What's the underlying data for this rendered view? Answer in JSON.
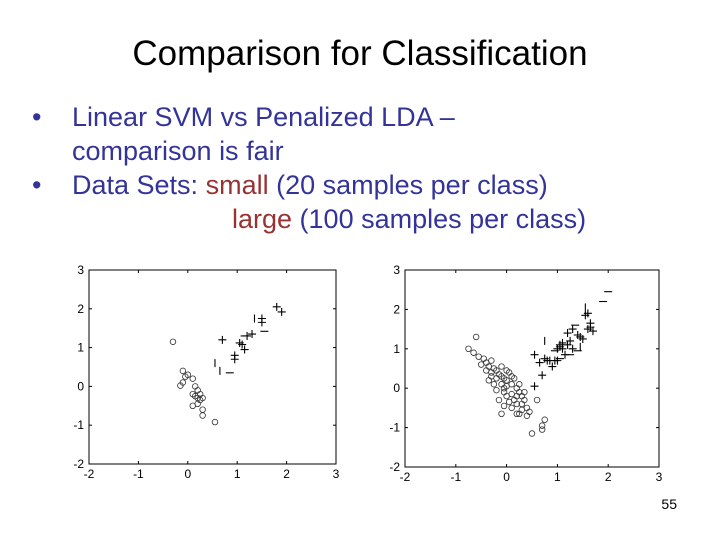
{
  "title": "Comparison for Classification",
  "bullets": [
    {
      "line1": "Linear SVM vs Penalized LDA –",
      "line2": "comparison is fair"
    },
    {
      "prefix": "Data Sets: ",
      "small_word": "small",
      "small_desc": " (20 samples per class)",
      "large_word": "large",
      "large_desc": " (100 samples per class)"
    }
  ],
  "bullet_char": "•",
  "page_number": "55",
  "colors": {
    "text_blue": "#333399",
    "highlight_red": "#993333"
  },
  "chart_data": [
    {
      "type": "scatter",
      "title": "",
      "xlabel": "",
      "ylabel": "",
      "xlim": [
        -2,
        3
      ],
      "ylim": [
        -2,
        3
      ],
      "xticks": [
        "-2",
        "-1",
        "0",
        "1",
        "2",
        "3"
      ],
      "yticks": [
        "-2",
        "-1",
        "0",
        "1",
        "2",
        "3"
      ],
      "series": [
        {
          "name": "class-circle",
          "marker": "o",
          "points": [
            [
              -0.3,
              1.15
            ],
            [
              -0.1,
              0.4
            ],
            [
              -0.05,
              0.25
            ],
            [
              -0.1,
              0.1
            ],
            [
              -0.15,
              0.02
            ],
            [
              0.1,
              0.2
            ],
            [
              0.15,
              0
            ],
            [
              0.2,
              -0.1
            ],
            [
              0.1,
              -0.2
            ],
            [
              0.2,
              -0.3
            ],
            [
              0.25,
              -0.35
            ],
            [
              0.3,
              -0.3
            ],
            [
              0.15,
              -0.25
            ],
            [
              0.1,
              -0.5
            ],
            [
              0.2,
              -0.45
            ],
            [
              0.3,
              -0.6
            ],
            [
              0.3,
              -0.75
            ],
            [
              0.55,
              -0.92
            ],
            [
              0,
              0.3
            ],
            [
              0.25,
              -0.2
            ]
          ]
        },
        {
          "name": "class-plus",
          "marker": "+",
          "points": [
            [
              1.8,
              2.05
            ],
            [
              1.9,
              1.92
            ],
            [
              1.5,
              1.75
            ],
            [
              1.5,
              1.65
            ],
            [
              1.3,
              1.35
            ],
            [
              1.05,
              1.12
            ],
            [
              1.1,
              1.08
            ],
            [
              1.15,
              0.95
            ],
            [
              0.7,
              1.2
            ],
            [
              0.95,
              0.8
            ],
            [
              0.95,
              0.7
            ],
            [
              1.2,
              1.3
            ]
          ]
        },
        {
          "name": "class-vbar",
          "marker": "|",
          "points": [
            [
              0.55,
              0.6
            ],
            [
              0.65,
              0.4
            ],
            [
              1.35,
              1.75
            ]
          ]
        },
        {
          "name": "class-dash",
          "marker": "-",
          "points": [
            [
              0.85,
              0.35
            ],
            [
              1.55,
              1.42
            ],
            [
              1.15,
              1.3
            ]
          ]
        }
      ]
    },
    {
      "type": "scatter",
      "title": "",
      "xlabel": "",
      "ylabel": "",
      "xlim": [
        -2,
        3
      ],
      "ylim": [
        -2,
        3
      ],
      "xticks": [
        "-2",
        "-1",
        "0",
        "1",
        "2",
        "3"
      ],
      "yticks": [
        "-2",
        "-1",
        "0",
        "1",
        "2",
        "3"
      ],
      "series": [
        {
          "name": "class-circle",
          "marker": "o",
          "points": [
            [
              -0.6,
              1.3
            ],
            [
              -0.75,
              1.0
            ],
            [
              -0.65,
              0.9
            ],
            [
              -0.55,
              0.8
            ],
            [
              -0.45,
              0.75
            ],
            [
              -0.5,
              0.6
            ],
            [
              -0.4,
              0.65
            ],
            [
              -0.35,
              0.55
            ],
            [
              -0.3,
              0.7
            ],
            [
              -0.25,
              0.5
            ],
            [
              -0.2,
              0.45
            ],
            [
              -0.3,
              0.4
            ],
            [
              -0.15,
              0.35
            ],
            [
              -0.1,
              0.3
            ],
            [
              -0.2,
              0.25
            ],
            [
              -0.05,
              0.25
            ],
            [
              0,
              0.2
            ],
            [
              -0.1,
              0.1
            ],
            [
              -0.25,
              0.1
            ],
            [
              0.05,
              0.4
            ],
            [
              0.1,
              0.3
            ],
            [
              0.15,
              0.25
            ],
            [
              0.0,
              0.05
            ],
            [
              -0.05,
              0.0
            ],
            [
              0.1,
              0.1
            ],
            [
              0.2,
              0.0
            ],
            [
              0.25,
              -0.1
            ],
            [
              0.3,
              -0.2
            ],
            [
              0.1,
              -0.15
            ],
            [
              0.0,
              -0.2
            ],
            [
              -0.05,
              -0.1
            ],
            [
              0.15,
              -0.3
            ],
            [
              0.2,
              -0.4
            ],
            [
              0.35,
              -0.3
            ],
            [
              0.4,
              -0.5
            ],
            [
              0.3,
              -0.55
            ],
            [
              0.25,
              -0.65
            ],
            [
              0.45,
              -0.6
            ],
            [
              0.4,
              -0.7
            ],
            [
              0.1,
              -0.5
            ],
            [
              -0.05,
              -0.45
            ],
            [
              -0.15,
              -0.3
            ],
            [
              -0.1,
              -0.65
            ],
            [
              0.2,
              -0.65
            ],
            [
              0.35,
              -0.1
            ],
            [
              -0.35,
              0.2
            ],
            [
              -0.2,
              -0.05
            ],
            [
              0.05,
              -0.35
            ],
            [
              0.25,
              0.1
            ],
            [
              -0.4,
              0.45
            ],
            [
              0.6,
              -0.3
            ],
            [
              0.75,
              -0.8
            ],
            [
              0.7,
              -0.95
            ],
            [
              0.5,
              -1.15
            ],
            [
              0.7,
              -1.05
            ],
            [
              -0.1,
              0.55
            ],
            [
              0.2,
              -0.2
            ],
            [
              0.3,
              -0.4
            ],
            [
              -0.3,
              0.3
            ],
            [
              0.0,
              0.45
            ]
          ]
        },
        {
          "name": "class-plus",
          "marker": "+",
          "points": [
            [
              0.55,
              0.85
            ],
            [
              0.65,
              0.65
            ],
            [
              0.7,
              0.33
            ],
            [
              0.55,
              0.05
            ],
            [
              0.75,
              0.75
            ],
            [
              0.85,
              0.7
            ],
            [
              0.9,
              0.55
            ],
            [
              0.95,
              0.7
            ],
            [
              1,
              1
            ],
            [
              1.05,
              1.1
            ],
            [
              1.05,
              1.05
            ],
            [
              1.1,
              1.0
            ],
            [
              1.15,
              0.85
            ],
            [
              1.2,
              1.1
            ],
            [
              1.25,
              1.2
            ],
            [
              1.2,
              1.4
            ],
            [
              1.3,
              1.5
            ],
            [
              1.45,
              1.3
            ],
            [
              1.5,
              1.25
            ],
            [
              1.55,
              1.85
            ],
            [
              1.6,
              1.9
            ],
            [
              1.65,
              1.55
            ],
            [
              1.7,
              1.45
            ],
            [
              1.6,
              1.5
            ],
            [
              1.65,
              1.65
            ],
            [
              1.1,
              1.15
            ],
            [
              1.3,
              1.0
            ],
            [
              1.4,
              1.35
            ],
            [
              0.8,
              0.7
            ],
            [
              1.0,
              0.7
            ]
          ]
        },
        {
          "name": "class-vbar",
          "marker": "|",
          "points": [
            [
              0.75,
              1.2
            ],
            [
              1.55,
              2.05
            ],
            [
              1.45,
              1.05
            ]
          ]
        },
        {
          "name": "class-dash",
          "marker": "-",
          "points": [
            [
              1.9,
              2.2
            ],
            [
              2.0,
              2.45
            ],
            [
              1.4,
              0.95
            ],
            [
              1.25,
              0.85
            ],
            [
              1.05,
              0.75
            ],
            [
              0.95,
              0.95
            ],
            [
              1.35,
              1.6
            ]
          ]
        }
      ]
    }
  ]
}
